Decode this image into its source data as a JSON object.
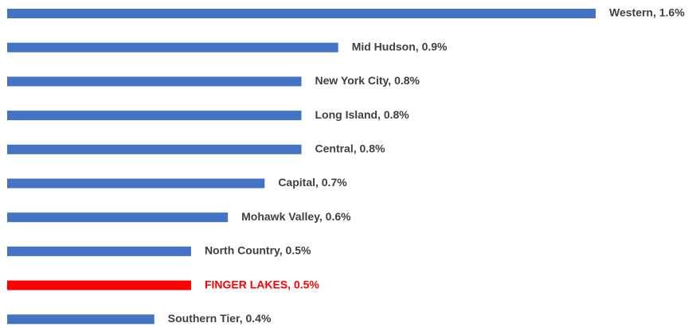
{
  "chart_data": {
    "type": "bar",
    "orientation": "horizontal",
    "values": [
      1.6,
      0.9,
      0.8,
      0.8,
      0.8,
      0.7,
      0.6,
      0.5,
      0.5,
      0.4
    ],
    "value_labels": [
      "Western, 1.6%",
      "Mid Hudson, 0.9%",
      "New York City, 0.8%",
      "Long Island, 0.8%",
      "Central, 0.8%",
      "Capital, 0.7%",
      "Mohawk Valley, 0.6%",
      "North Country, 0.5%",
      "FINGER LAKES, 0.5%",
      "Southern Tier, 0.4%"
    ],
    "color": "#4472c4",
    "colors": [
      "#4472c4",
      "#4472c4",
      "#4472c4",
      "#4472c4",
      "#4472c4",
      "#4472c4",
      "#4472c4",
      "#4472c4",
      "#ff0000",
      "#4472c4"
    ],
    "label_color": "#404040"
  }
}
